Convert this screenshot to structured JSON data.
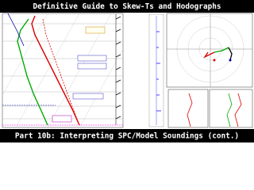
{
  "header": {
    "title": "Definitive Guide to Skew-Ts and Hodographs"
  },
  "footer": {
    "title": "Part 10b: Interpreting SPC/Model Soundings (cont.)"
  }
}
